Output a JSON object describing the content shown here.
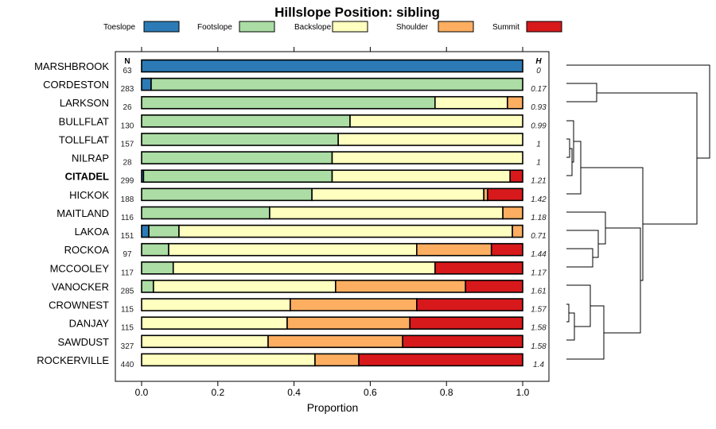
{
  "chart_data": {
    "type": "bar",
    "orientation": "horizontal-stacked",
    "title": "Hillslope Position: sibling",
    "xlabel": "Proportion",
    "xlim": [
      0,
      1
    ],
    "xticks": [
      "0.0",
      "0.2",
      "0.4",
      "0.6",
      "0.8",
      "1.0"
    ],
    "n_header": "N",
    "h_header": "H",
    "legend": {
      "placement": "top",
      "entries": [
        "Toeslope",
        "Footslope",
        "Backslope",
        "Shoulder",
        "Summit"
      ]
    },
    "colors": [
      "#2C7BB6",
      "#ABDDA4",
      "#FFFFBF",
      "#FDAE61",
      "#D7191C"
    ],
    "categories": [
      "MARSHBROOK",
      "CORDESTON",
      "LARKSON",
      "BULLFLAT",
      "TOLLFLAT",
      "NILRAP",
      "CITADEL",
      "HICKOK",
      "MAITLAND",
      "LAKOA",
      "ROCKOA",
      "MCCOOLEY",
      "VANOCKER",
      "CROWNEST",
      "DANJAY",
      "SAWDUST",
      "ROCKERVILLE"
    ],
    "highlight": "CITADEL",
    "n": [
      "63",
      "283",
      "26",
      "130",
      "157",
      "28",
      "299",
      "188",
      "116",
      "151",
      "97",
      "117",
      "285",
      "115",
      "115",
      "327",
      "440"
    ],
    "h": [
      "0",
      "0.17",
      "0.93",
      "0.99",
      "1",
      "1",
      "1.21",
      "1.42",
      "1.18",
      "0.71",
      "1.44",
      "1.17",
      "1.61",
      "1.57",
      "1.58",
      "1.58",
      "1.4"
    ],
    "series": [
      {
        "name": "Toeslope",
        "values": [
          1,
          0.025,
          0,
          0,
          0,
          0,
          0.005,
          0,
          0,
          0.019,
          0,
          0,
          0,
          0,
          0,
          0,
          0
        ]
      },
      {
        "name": "Footslope",
        "values": [
          0,
          0.975,
          0.77,
          0.547,
          0.516,
          0.5,
          0.495,
          0.447,
          0.336,
          0.079,
          0.071,
          0.083,
          0.031,
          0,
          0,
          0,
          0
        ]
      },
      {
        "name": "Backslope",
        "values": [
          0,
          0,
          0.19,
          0.453,
          0.484,
          0.5,
          0.467,
          0.451,
          0.612,
          0.875,
          0.651,
          0.687,
          0.478,
          0.39,
          0.382,
          0.332,
          0.455
        ]
      },
      {
        "name": "Shoulder",
        "values": [
          0,
          0,
          0.04,
          0,
          0,
          0,
          0,
          0.01,
          0.052,
          0.027,
          0.196,
          0,
          0.341,
          0.332,
          0.322,
          0.353,
          0.115
        ]
      },
      {
        "name": "Summit",
        "values": [
          0,
          0,
          0,
          0,
          0,
          0,
          0.033,
          0.092,
          0,
          0,
          0.082,
          0.23,
          0.15,
          0.278,
          0.296,
          0.315,
          0.43
        ]
      }
    ]
  }
}
